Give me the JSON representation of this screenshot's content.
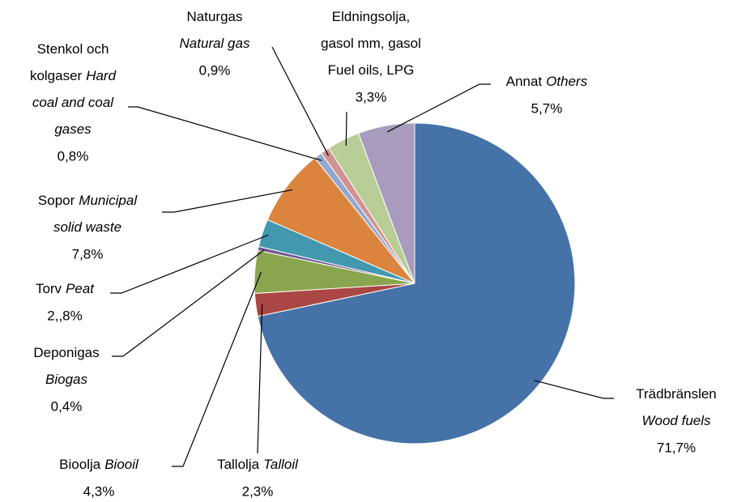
{
  "chart_data": {
    "type": "pie",
    "categories": [
      [
        [
          "Trädbränslen"
        ],
        [
          {
            "text": "Wood fuels",
            "italic": true
          }
        ]
      ],
      [
        [
          "Tallolja",
          {
            "text": "Talloil",
            "italic": true
          }
        ]
      ],
      [
        [
          "Bioolja",
          {
            "text": "Biooil",
            "italic": true
          }
        ]
      ],
      [
        [
          "Deponigas"
        ],
        [
          {
            "text": "Biogas",
            "italic": true
          }
        ]
      ],
      [
        [
          "Torv",
          {
            "text": "Peat",
            "italic": true
          }
        ]
      ],
      [
        [
          "Sopor",
          {
            "text": "Municipal",
            "italic": true
          }
        ],
        [
          {
            "text": "solid waste",
            "italic": true
          }
        ]
      ],
      [
        [
          "Stenkol och"
        ],
        [
          "kolgaser",
          {
            "text": "Hard",
            "italic": true
          }
        ],
        [
          {
            "text": "coal and coal",
            "italic": true
          }
        ],
        [
          {
            "text": "gases",
            "italic": true
          }
        ]
      ],
      [
        [
          "Naturgas"
        ],
        [
          {
            "text": "Natural gas",
            "italic": true
          }
        ]
      ],
      [
        [
          "Eldningsolja,"
        ],
        [
          "gasol mm, gasol"
        ],
        [
          "Fuel oils, LPG"
        ]
      ],
      [
        [
          "Annat",
          {
            "text": "Others",
            "italic": true
          }
        ]
      ]
    ],
    "values": [
      71.7,
      2.3,
      4.3,
      0.4,
      2.8,
      7.8,
      0.8,
      0.9,
      3.3,
      5.7
    ],
    "value_labels": [
      "71,7%",
      "2,3%",
      "4,3%",
      "0,4%",
      "2,,8%",
      "7,8%",
      "0,8%",
      "0,9%",
      "3,3%",
      "5,7%"
    ],
    "colors": [
      "#4572a7",
      "#aa4643",
      "#89a54e",
      "#71588f",
      "#4198af",
      "#db843d",
      "#93a9cf",
      "#d19392",
      "#b9cd96",
      "#a99bbd"
    ]
  }
}
